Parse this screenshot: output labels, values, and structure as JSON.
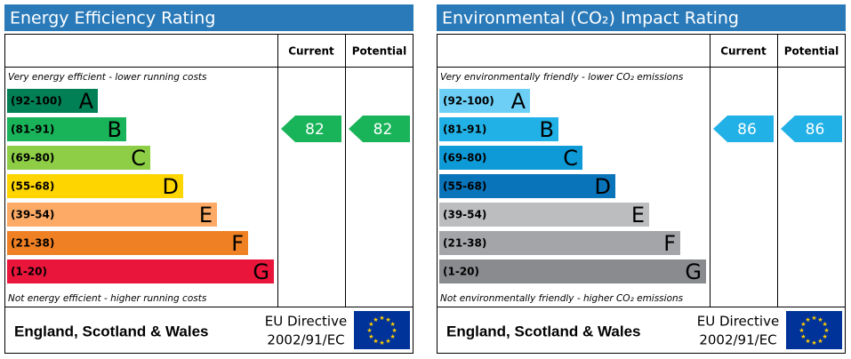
{
  "panels": [
    {
      "title": "Energy Efficiency Rating",
      "headers": [
        "Current",
        "Potential"
      ],
      "top_note": "Very energy efficient - lower running costs",
      "bottom_note": "Not energy efficient - higher running costs",
      "bands": [
        {
          "range": "(92-100)",
          "letter": "A",
          "color": "#008054"
        },
        {
          "range": "(81-91)",
          "letter": "B",
          "color": "#19b459"
        },
        {
          "range": "(69-80)",
          "letter": "C",
          "color": "#8dce46"
        },
        {
          "range": "(55-68)",
          "letter": "D",
          "color": "#ffd500"
        },
        {
          "range": "(39-54)",
          "letter": "E",
          "color": "#fcaa65"
        },
        {
          "range": "(21-38)",
          "letter": "F",
          "color": "#ef8023"
        },
        {
          "range": "(1-20)",
          "letter": "G",
          "color": "#e9153b"
        }
      ],
      "current": 82,
      "potential": 82,
      "footer": {
        "region": "England, Scotland & Wales",
        "directive": "EU Directive",
        "code": "2002/91/EC"
      }
    },
    {
      "title": "Environmental (CO₂) Impact Rating",
      "headers": [
        "Current",
        "Potential"
      ],
      "top_note": "Very environmentally friendly - lower CO₂ emissions",
      "bottom_note": "Not environmentally friendly - higher CO₂ emissions",
      "bands": [
        {
          "range": "(92-100)",
          "letter": "A",
          "color": "#6dcff6"
        },
        {
          "range": "(81-91)",
          "letter": "B",
          "color": "#22b1e6"
        },
        {
          "range": "(69-80)",
          "letter": "C",
          "color": "#0d9ad7"
        },
        {
          "range": "(55-68)",
          "letter": "D",
          "color": "#0a74bb"
        },
        {
          "range": "(39-54)",
          "letter": "E",
          "color": "#bbbdbf"
        },
        {
          "range": "(21-38)",
          "letter": "F",
          "color": "#a3a5a8"
        },
        {
          "range": "(1-20)",
          "letter": "G",
          "color": "#898b8e"
        }
      ],
      "current": 86,
      "potential": 86,
      "footer": {
        "region": "England, Scotland & Wales",
        "directive": "EU Directive",
        "code": "2002/91/EC"
      }
    }
  ]
}
